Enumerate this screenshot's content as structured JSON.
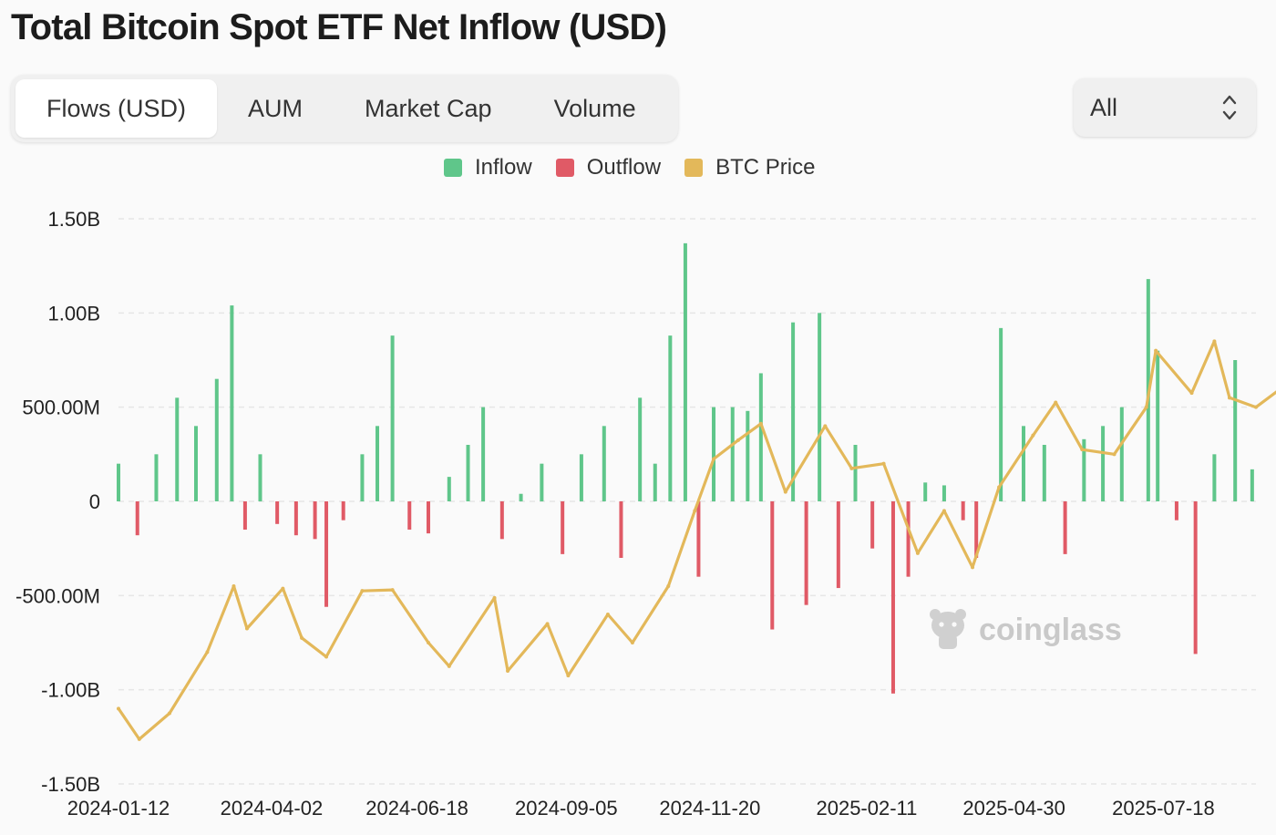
{
  "header": {
    "title": "Total Bitcoin Spot ETF Net Inflow (USD)"
  },
  "tabs": [
    {
      "label": "Flows (USD)",
      "active": true
    },
    {
      "label": "AUM",
      "active": false
    },
    {
      "label": "Market Cap",
      "active": false
    },
    {
      "label": "Volume",
      "active": false
    }
  ],
  "range_select": {
    "value": "All",
    "icon": "up-down-chevron-icon"
  },
  "watermark": {
    "text": "coinglass",
    "icon": "coinglass-mascot-icon"
  },
  "colors": {
    "inflow": "#5fc68a",
    "outflow": "#e05a66",
    "btc_price": "#e3b85a",
    "grid": "#e6e6e6"
  },
  "chart_data": {
    "type": "bar",
    "title": "Total Bitcoin Spot ETF Net Inflow (USD)",
    "legend": [
      "Inflow",
      "Outflow",
      "BTC Price"
    ],
    "legend_position": "top-center",
    "grid": true,
    "y_ticks": [
      "1.50B",
      "1.00B",
      "500.00M",
      "0",
      "-500.00M",
      "-1.00B",
      "-1.50B"
    ],
    "ylim": [
      -1500000000,
      1500000000
    ],
    "x_ticks": [
      "2024-01-12",
      "2024-04-02",
      "2024-06-18",
      "2024-09-05",
      "2024-11-20",
      "2025-02-11",
      "2025-04-30",
      "2025-07-18"
    ],
    "xlim": [
      "2024-01-12",
      "2025-09-05"
    ],
    "series": [
      {
        "name": "Inflow/Outflow",
        "unit": "USD",
        "points": [
          [
            "2024-01-12",
            200000000
          ],
          [
            "2024-01-22",
            -180000000
          ],
          [
            "2024-02-01",
            250000000
          ],
          [
            "2024-02-12",
            550000000
          ],
          [
            "2024-02-22",
            400000000
          ],
          [
            "2024-03-04",
            650000000
          ],
          [
            "2024-03-12",
            1040000000
          ],
          [
            "2024-03-19",
            -150000000
          ],
          [
            "2024-03-27",
            250000000
          ],
          [
            "2024-04-05",
            -120000000
          ],
          [
            "2024-04-15",
            -180000000
          ],
          [
            "2024-04-25",
            -200000000
          ],
          [
            "2024-05-01",
            -560000000
          ],
          [
            "2024-05-10",
            -100000000
          ],
          [
            "2024-05-20",
            250000000
          ],
          [
            "2024-05-28",
            400000000
          ],
          [
            "2024-06-05",
            880000000
          ],
          [
            "2024-06-14",
            -150000000
          ],
          [
            "2024-06-24",
            -170000000
          ],
          [
            "2024-07-05",
            130000000
          ],
          [
            "2024-07-15",
            300000000
          ],
          [
            "2024-07-23",
            500000000
          ],
          [
            "2024-08-02",
            -200000000
          ],
          [
            "2024-08-12",
            40000000
          ],
          [
            "2024-08-23",
            200000000
          ],
          [
            "2024-09-03",
            -280000000
          ],
          [
            "2024-09-13",
            250000000
          ],
          [
            "2024-09-25",
            400000000
          ],
          [
            "2024-10-04",
            -300000000
          ],
          [
            "2024-10-14",
            550000000
          ],
          [
            "2024-10-22",
            200000000
          ],
          [
            "2024-10-30",
            880000000
          ],
          [
            "2024-11-07",
            1370000000
          ],
          [
            "2024-11-14",
            -400000000
          ],
          [
            "2024-11-22",
            500000000
          ],
          [
            "2024-12-02",
            500000000
          ],
          [
            "2024-12-10",
            480000000
          ],
          [
            "2024-12-17",
            680000000
          ],
          [
            "2024-12-23",
            -680000000
          ],
          [
            "2025-01-03",
            950000000
          ],
          [
            "2025-01-10",
            -550000000
          ],
          [
            "2025-01-17",
            1000000000
          ],
          [
            "2025-01-27",
            -460000000
          ],
          [
            "2025-02-05",
            300000000
          ],
          [
            "2025-02-14",
            -250000000
          ],
          [
            "2025-02-25",
            -1020000000
          ],
          [
            "2025-03-05",
            -400000000
          ],
          [
            "2025-03-14",
            100000000
          ],
          [
            "2025-03-24",
            85000000
          ],
          [
            "2025-04-03",
            -100000000
          ],
          [
            "2025-04-10",
            -300000000
          ],
          [
            "2025-04-23",
            920000000
          ],
          [
            "2025-05-05",
            400000000
          ],
          [
            "2025-05-16",
            300000000
          ],
          [
            "2025-05-27",
            -280000000
          ],
          [
            "2025-06-06",
            330000000
          ],
          [
            "2025-06-16",
            400000000
          ],
          [
            "2025-06-26",
            500000000
          ],
          [
            "2025-07-10",
            1180000000
          ],
          [
            "2025-07-15",
            800000000
          ],
          [
            "2025-07-25",
            -100000000
          ],
          [
            "2025-08-04",
            -810000000
          ],
          [
            "2025-08-14",
            250000000
          ],
          [
            "2025-08-25",
            750000000
          ],
          [
            "2025-09-03",
            170000000
          ]
        ]
      },
      {
        "name": "BTC Price",
        "unit": "USD",
        "points": [
          [
            "2024-01-12",
            46000
          ],
          [
            "2024-01-23",
            39500
          ],
          [
            "2024-02-08",
            45000
          ],
          [
            "2024-02-28",
            58000
          ],
          [
            "2024-03-13",
            72000
          ],
          [
            "2024-03-20",
            63000
          ],
          [
            "2024-04-08",
            71500
          ],
          [
            "2024-04-18",
            61000
          ],
          [
            "2024-05-01",
            57000
          ],
          [
            "2024-05-20",
            71000
          ],
          [
            "2024-06-05",
            71200
          ],
          [
            "2024-06-24",
            60000
          ],
          [
            "2024-07-05",
            55000
          ],
          [
            "2024-07-29",
            69500
          ],
          [
            "2024-08-05",
            54000
          ],
          [
            "2024-08-26",
            64000
          ],
          [
            "2024-09-06",
            53000
          ],
          [
            "2024-09-27",
            66000
          ],
          [
            "2024-10-10",
            60000
          ],
          [
            "2024-10-29",
            72000
          ],
          [
            "2024-11-12",
            88000
          ],
          [
            "2024-11-22",
            99000
          ],
          [
            "2024-12-05",
            103000
          ],
          [
            "2024-12-17",
            106500
          ],
          [
            "2024-12-30",
            92000
          ],
          [
            "2025-01-20",
            106000
          ],
          [
            "2025-02-03",
            97000
          ],
          [
            "2025-02-20",
            98000
          ],
          [
            "2025-03-10",
            79000
          ],
          [
            "2025-03-24",
            88000
          ],
          [
            "2025-04-08",
            76000
          ],
          [
            "2025-04-22",
            93000
          ],
          [
            "2025-05-10",
            104000
          ],
          [
            "2025-05-22",
            111000
          ],
          [
            "2025-06-05",
            101000
          ],
          [
            "2025-06-22",
            100000
          ],
          [
            "2025-07-09",
            110000
          ],
          [
            "2025-07-14",
            122000
          ],
          [
            "2025-08-02",
            113000
          ],
          [
            "2025-08-14",
            124000
          ],
          [
            "2025-08-22",
            112000
          ],
          [
            "2025-09-05",
            110000
          ],
          [
            "2025-09-25",
            116000
          ]
        ]
      }
    ]
  }
}
